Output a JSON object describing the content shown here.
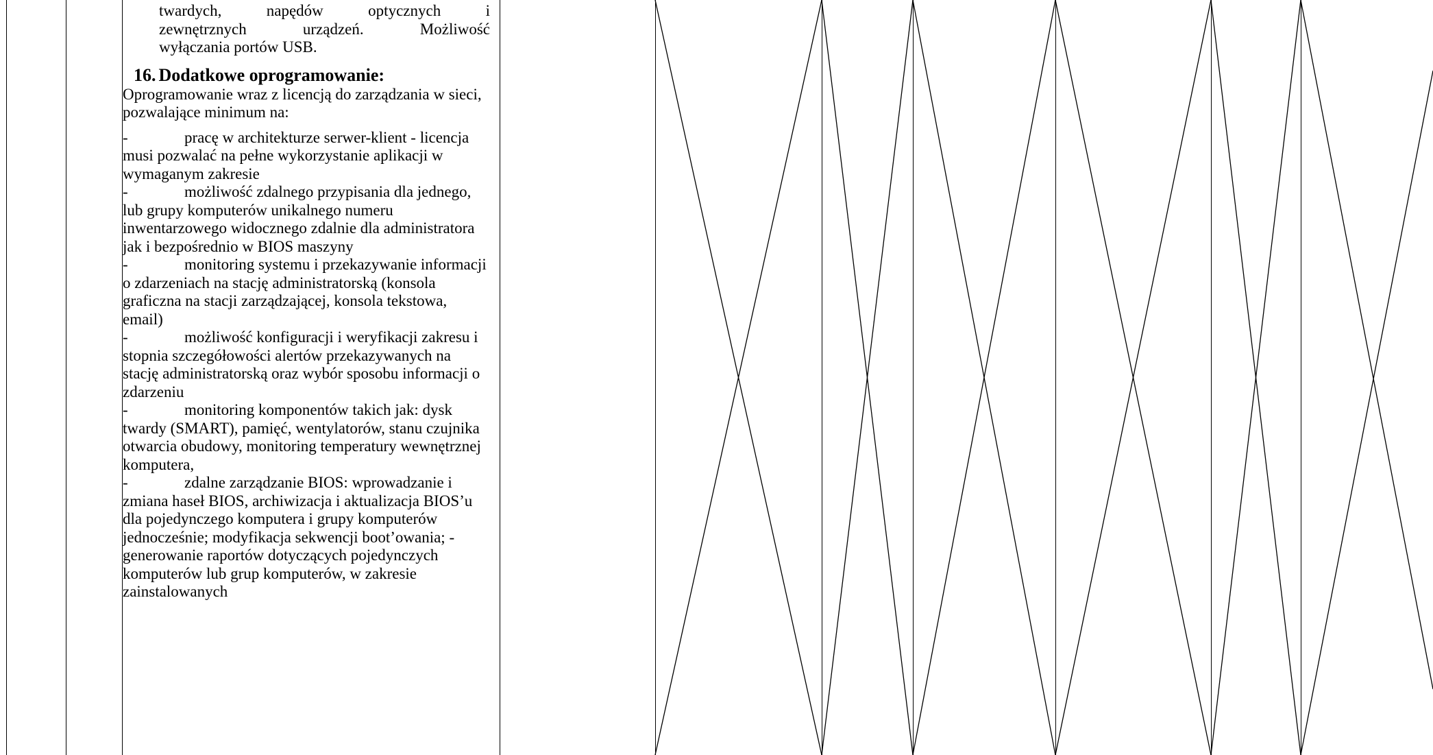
{
  "document": {
    "continuation": {
      "lines": [
        "twardych, napędów optycznych i",
        "zewnętrznych urządzeń. Możliwość",
        "wyłączania portów USB."
      ]
    },
    "section": {
      "number": "16.",
      "title": "Dodatkowe oprogramowanie:",
      "intro": "Oprogramowanie wraz z licencją do zarządzania w sieci, pozwalające minimum na:",
      "items": [
        {
          "dash": "-",
          "text": "pracę w architekturze serwer-klient - licencja musi pozwalać na pełne wykorzystanie aplikacji w wymaganym zakresie"
        },
        {
          "dash": "-",
          "text": "możliwość zdalnego przypisania dla jednego, lub grupy komputerów unikalnego numeru inwentarzowego widocznego zdalnie dla administratora jak i bezpośrednio w BIOS maszyny"
        },
        {
          "dash": "-",
          "text": "monitoring systemu i przekazywanie informacji o zdarzeniach na stację administratorską (konsola graficzna na stacji zarządzającej, konsola tekstowa, email)"
        },
        {
          "dash": "-",
          "text": "możliwość konfiguracji i weryfikacji zakresu i stopnia szczegółowości alertów przekazywanych na stację administratorską oraz wybór sposobu informacji o zdarzeniu"
        },
        {
          "dash": "-",
          "text": "monitoring komponentów takich jak: dysk twardy (SMART), pamięć, wentylatorów, stanu czujnika otwarcia obudowy, monitoring temperatury wewnętrznej komputera,"
        },
        {
          "dash": "-",
          "text": "zdalne zarządzanie BIOS: wprowadzanie i zmiana haseł BIOS, archiwizacja i aktualizacja BIOS’u dla pojedynczego komputera i grupy komputerów jednocześnie; modyfikacja sekwencji boot’owania; - generowanie raportów dotyczących pojedynczych komputerów lub grup komputerów, w zakresie zainstalowanych"
        }
      ]
    }
  },
  "colors": {
    "line": "#000000",
    "background": "#ffffff",
    "text": "#000000"
  }
}
